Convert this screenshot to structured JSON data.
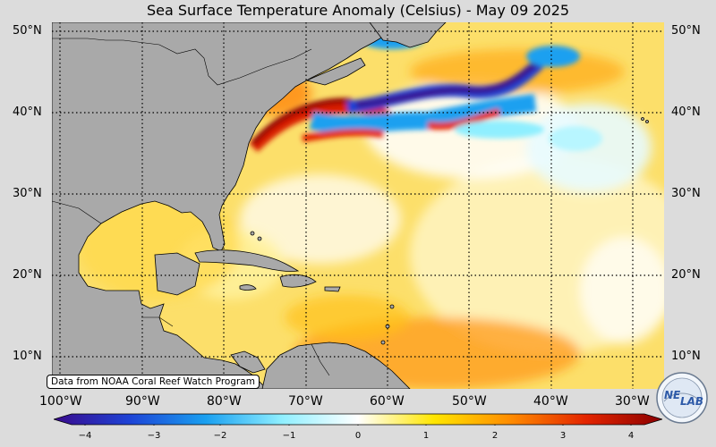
{
  "title": "Sea Surface Temperature Anomaly (Celsius) - May 09 2025",
  "attribution": "Data from NOAA Coral Reef Watch Program",
  "logo": {
    "text_top": "NE",
    "text_bottom": "LAB"
  },
  "latitude_labels": [
    "50°N",
    "40°N",
    "30°N",
    "20°N",
    "10°N"
  ],
  "latitude_labels_right": [
    "50°N",
    "40°N",
    "30°N",
    "20°N",
    "10°N"
  ],
  "longitude_labels": [
    "100°W",
    "90°W",
    "80°W",
    "70°W",
    "60°W",
    "50°W",
    "40°W",
    "30°W"
  ],
  "colorbar": {
    "ticks": [
      "−4",
      "−3",
      "−2",
      "−1",
      "0",
      "1",
      "2",
      "3",
      "4"
    ],
    "min": -4,
    "max": 4,
    "colors": [
      "#3a0a8c",
      "#1d43d6",
      "#1aa0f0",
      "#8fefff",
      "#ffffff",
      "#ffe600",
      "#ff8c00",
      "#e32400",
      "#8b0000"
    ]
  },
  "map": {
    "region": "North Atlantic, Gulf of Mexico and Caribbean",
    "land_color": "#a9a9a9",
    "gridlines": "dotted"
  }
}
